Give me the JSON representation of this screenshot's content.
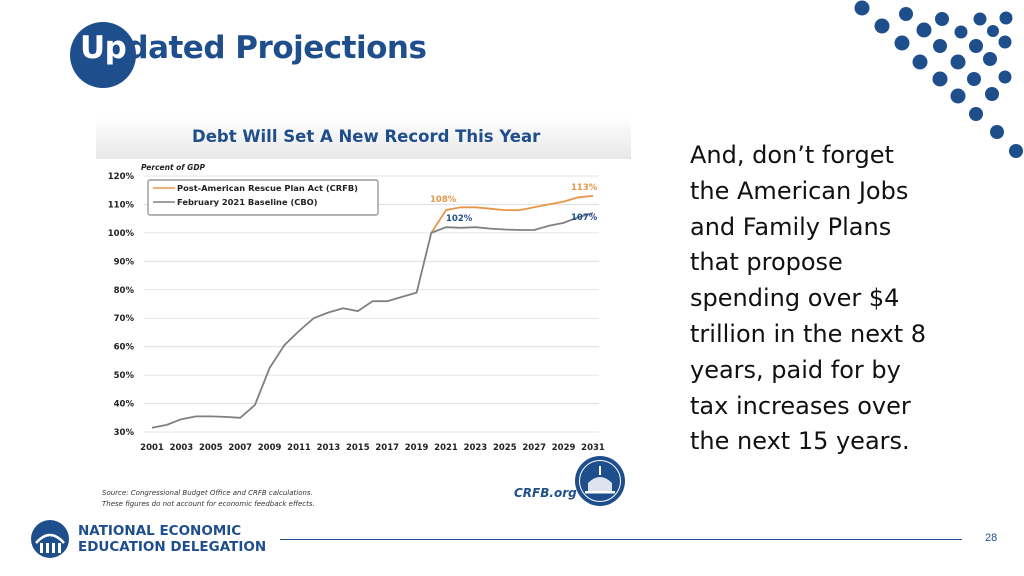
{
  "slide": {
    "title_highlight": "Up",
    "title_rest": "dated Projections",
    "body_text": "And, don’t forget\nthe American Jobs\nand Family Plans\nthat propose\nspending over $4\ntrillion in the next 8\nyears, paid for by\ntax increases over\nthe next 15 years.",
    "page_number": "28",
    "org_line1": "NATIONAL ECONOMIC",
    "org_line2": "EDUCATION DELEGATION",
    "accent_color": "#1f4e8c"
  },
  "chart_data": {
    "type": "line",
    "title": "Debt Will Set A New Record This Year",
    "ylabel": "Percent of GDP",
    "ylim": [
      30,
      120
    ],
    "yticks": [
      "30%",
      "40%",
      "50%",
      "60%",
      "70%",
      "80%",
      "90%",
      "100%",
      "110%",
      "120%"
    ],
    "xticks": [
      "2001",
      "2003",
      "2005",
      "2007",
      "2009",
      "2011",
      "2013",
      "2015",
      "2017",
      "2019",
      "2021",
      "2023",
      "2025",
      "2027",
      "2029",
      "2031"
    ],
    "x": [
      2001,
      2002,
      2003,
      2004,
      2005,
      2006,
      2007,
      2008,
      2009,
      2010,
      2011,
      2012,
      2013,
      2014,
      2015,
      2016,
      2017,
      2018,
      2019,
      2020,
      2021,
      2022,
      2023,
      2024,
      2025,
      2026,
      2027,
      2028,
      2029,
      2030,
      2031
    ],
    "series": [
      {
        "name": "Post-American Rescue Plan Act (CRFB)",
        "color": "#e8964a",
        "values": [
          null,
          null,
          null,
          null,
          null,
          null,
          null,
          null,
          null,
          null,
          null,
          null,
          null,
          null,
          null,
          null,
          null,
          null,
          null,
          100,
          108,
          109,
          109,
          108.5,
          108,
          108,
          109,
          110,
          111,
          112.5,
          113
        ]
      },
      {
        "name": "February 2021 Baseline (CBO)",
        "color": "#808080",
        "values": [
          31.5,
          32.5,
          34.5,
          35.5,
          35.5,
          35.3,
          35,
          39.5,
          52.5,
          60.5,
          65.5,
          70,
          72,
          73.5,
          72.5,
          76,
          76,
          77.5,
          79,
          100,
          102,
          101.8,
          102,
          101.5,
          101.2,
          101,
          101,
          102.5,
          103.5,
          105.5,
          107
        ]
      }
    ],
    "annotations": [
      {
        "text": "108%",
        "x": 2021,
        "y": 108,
        "color": "#e8964a"
      },
      {
        "text": "102%",
        "x": 2021,
        "y": 102,
        "color": "#1f4e8c"
      },
      {
        "text": "113%",
        "x": 2031,
        "y": 113,
        "color": "#e8964a"
      },
      {
        "text": "107%",
        "x": 2031,
        "y": 107,
        "color": "#1f4e8c"
      }
    ],
    "legend_position": "top-left",
    "grid": true,
    "source": "Source: Congressional Budget Office and CRFB calculations.\nThese figures do not account for economic feedback effects.",
    "brand": "CRFB.org"
  }
}
